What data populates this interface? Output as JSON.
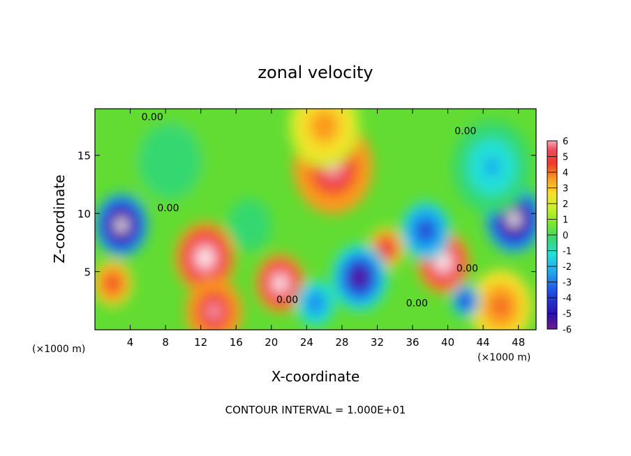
{
  "chart_data": {
    "type": "heatmap",
    "title": "zonal velocity",
    "xlabel": "X-coordinate",
    "ylabel": "Z-coordinate",
    "x_unit_left": "(×1000 m)",
    "x_unit_right": "(×1000 m)",
    "footer": "CONTOUR INTERVAL = 1.000E+01",
    "xlim": [
      0,
      50
    ],
    "ylim": [
      0,
      19
    ],
    "x_ticks": [
      4,
      8,
      12,
      16,
      20,
      24,
      28,
      32,
      36,
      40,
      44,
      48
    ],
    "y_ticks": [
      5,
      10,
      15
    ],
    "colorbar": {
      "min": -6,
      "max": 6,
      "ticks": [
        6,
        5,
        4,
        3,
        2,
        1,
        0,
        -1,
        -2,
        -3,
        -4,
        -5,
        -6
      ]
    },
    "contour_labels": [
      {
        "text": "0.00",
        "x": 6.5,
        "y": 18.0
      },
      {
        "text": "0.00",
        "x": 42.0,
        "y": 16.8
      },
      {
        "text": "0.00",
        "x": 8.3,
        "y": 10.2
      },
      {
        "text": "0.00",
        "x": 21.8,
        "y": 2.3
      },
      {
        "text": "0.00",
        "x": 36.5,
        "y": 2.0
      },
      {
        "text": "0.00",
        "x": 42.2,
        "y": 5.0
      }
    ],
    "features": [
      {
        "x": 27,
        "y": 14,
        "r": 4.5,
        "v": 6
      },
      {
        "x": 12.5,
        "y": 6.2,
        "r": 3.4,
        "v": 6.5
      },
      {
        "x": 21,
        "y": 4.0,
        "r": 2.8,
        "v": 6.5
      },
      {
        "x": 39.5,
        "y": 5.8,
        "r": 3.0,
        "v": 6.5
      },
      {
        "x": 2.0,
        "y": 4.0,
        "r": 2.2,
        "v": 4.5
      },
      {
        "x": 13.5,
        "y": 1.6,
        "r": 3.2,
        "v": 6.0
      },
      {
        "x": 33.0,
        "y": 7.0,
        "r": 2.0,
        "v": 5.0
      },
      {
        "x": 46.0,
        "y": 2.0,
        "r": 3.5,
        "v": 4.0
      },
      {
        "x": 26.0,
        "y": 17.5,
        "r": 4.0,
        "v": 3.0
      },
      {
        "x": 3.0,
        "y": 9.0,
        "r": 3.0,
        "v": -6.5
      },
      {
        "x": 47.5,
        "y": 9.5,
        "r": 3.2,
        "v": -6.5
      },
      {
        "x": 30.0,
        "y": 4.5,
        "r": 3.2,
        "v": -5.5
      },
      {
        "x": 37.5,
        "y": 8.5,
        "r": 2.8,
        "v": -4.5
      },
      {
        "x": 17.5,
        "y": 9.0,
        "r": 2.5,
        "v": -1.2
      },
      {
        "x": 45.0,
        "y": 14.0,
        "r": 4.5,
        "v": -2.5
      },
      {
        "x": 8.5,
        "y": 14.5,
        "r": 4.5,
        "v": -1.0
      },
      {
        "x": 25.0,
        "y": 2.3,
        "r": 2.2,
        "v": -4.0
      },
      {
        "x": 42.0,
        "y": 2.5,
        "r": 1.6,
        "v": -5.0
      }
    ]
  }
}
